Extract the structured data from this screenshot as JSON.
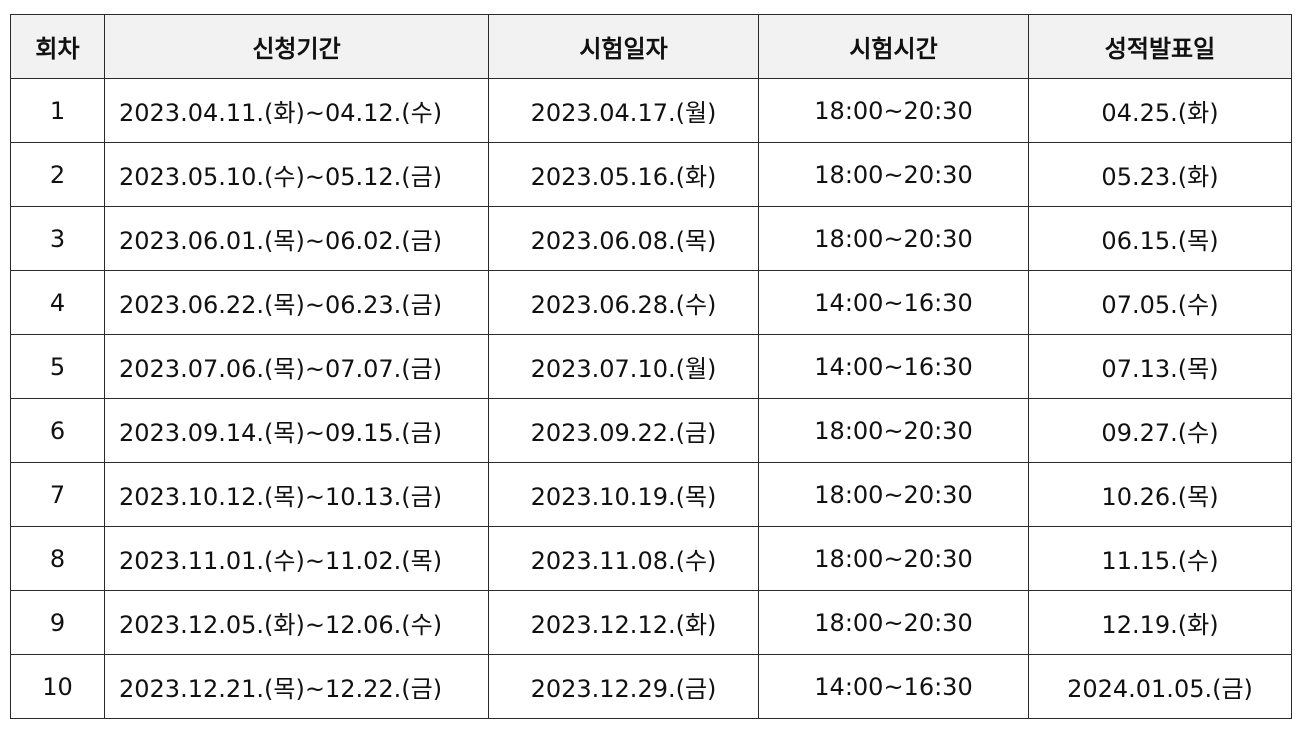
{
  "table": {
    "headers": [
      "회차",
      "신청기간",
      "시험일자",
      "시험시간",
      "성적발표일"
    ],
    "rows": [
      [
        "1",
        "2023.04.11.(화)~04.12.(수)",
        "2023.04.17.(월)",
        "18:00~20:30",
        "04.25.(화)"
      ],
      [
        "2",
        "2023.05.10.(수)~05.12.(금)",
        "2023.05.16.(화)",
        "18:00~20:30",
        "05.23.(화)"
      ],
      [
        "3",
        "2023.06.01.(목)~06.02.(금)",
        "2023.06.08.(목)",
        "18:00~20:30",
        "06.15.(목)"
      ],
      [
        "4",
        "2023.06.22.(목)~06.23.(금)",
        "2023.06.28.(수)",
        "14:00~16:30",
        "07.05.(수)"
      ],
      [
        "5",
        "2023.07.06.(목)~07.07.(금)",
        "2023.07.10.(월)",
        "14:00~16:30",
        "07.13.(목)"
      ],
      [
        "6",
        "2023.09.14.(목)~09.15.(금)",
        "2023.09.22.(금)",
        "18:00~20:30",
        "09.27.(수)"
      ],
      [
        "7",
        "2023.10.12.(목)~10.13.(금)",
        "2023.10.19.(목)",
        "18:00~20:30",
        "10.26.(목)"
      ],
      [
        "8",
        "2023.11.01.(수)~11.02.(목)",
        "2023.11.08.(수)",
        "18:00~20:30",
        "11.15.(수)"
      ],
      [
        "9",
        "2023.12.05.(화)~12.06.(수)",
        "2023.12.12.(화)",
        "18:00~20:30",
        "12.19.(화)"
      ],
      [
        "10",
        "2023.12.21.(목)~12.22.(금)",
        "2023.12.29.(금)",
        "14:00~16:30",
        "2024.01.05.(금)"
      ]
    ]
  }
}
